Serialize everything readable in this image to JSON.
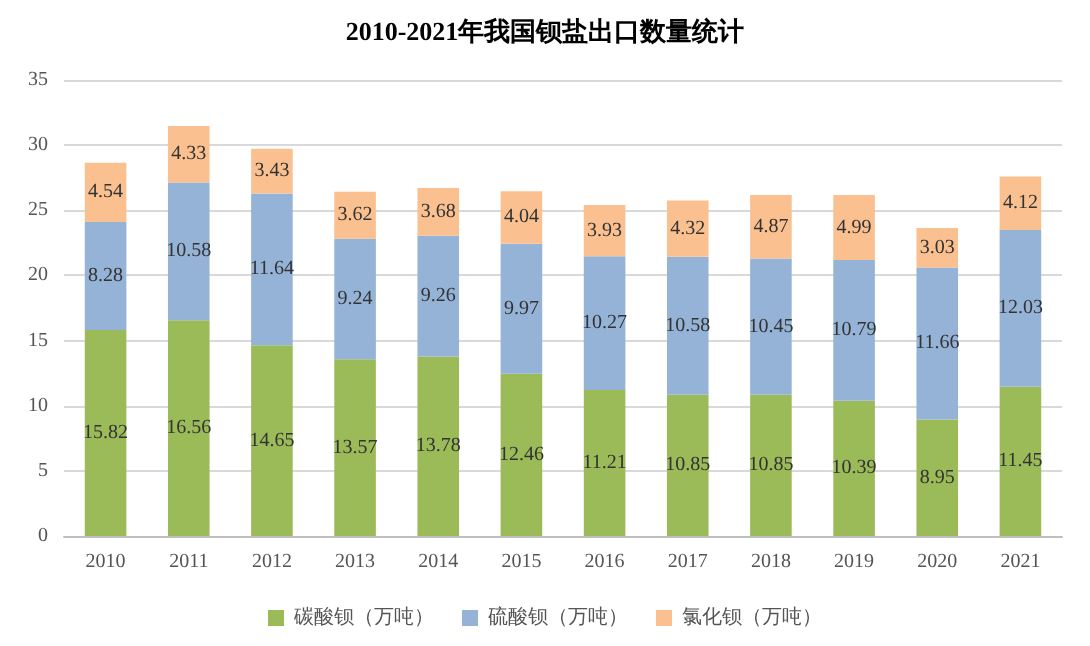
{
  "chart_data": {
    "type": "bar",
    "title": "2010-2021年我国钡盐出口数量统计",
    "categories": [
      "2010",
      "2011",
      "2012",
      "2013",
      "2014",
      "2015",
      "2016",
      "2017",
      "2018",
      "2019",
      "2020",
      "2021"
    ],
    "series": [
      {
        "name": "碳酸钡（万吨）",
        "color": "#9bbb59",
        "values": [
          15.82,
          16.56,
          14.65,
          13.57,
          13.78,
          12.46,
          11.21,
          10.85,
          10.85,
          10.39,
          8.95,
          11.45
        ]
      },
      {
        "name": "硫酸钡（万吨）",
        "color": "#95b3d7",
        "values": [
          8.28,
          10.58,
          11.64,
          9.24,
          9.26,
          9.97,
          10.27,
          10.58,
          10.45,
          10.79,
          11.66,
          12.03
        ]
      },
      {
        "name": "氯化钡（万吨）",
        "color": "#fac090",
        "values": [
          4.54,
          4.33,
          3.43,
          3.62,
          3.68,
          4.04,
          3.93,
          4.32,
          4.87,
          4.99,
          3.03,
          4.12
        ]
      }
    ],
    "stacked": true,
    "data_labels": true,
    "ylim": [
      0,
      35
    ],
    "yticks": [
      0,
      5,
      10,
      15,
      20,
      25,
      30,
      35
    ],
    "grid": "y",
    "legend": "bottom"
  }
}
